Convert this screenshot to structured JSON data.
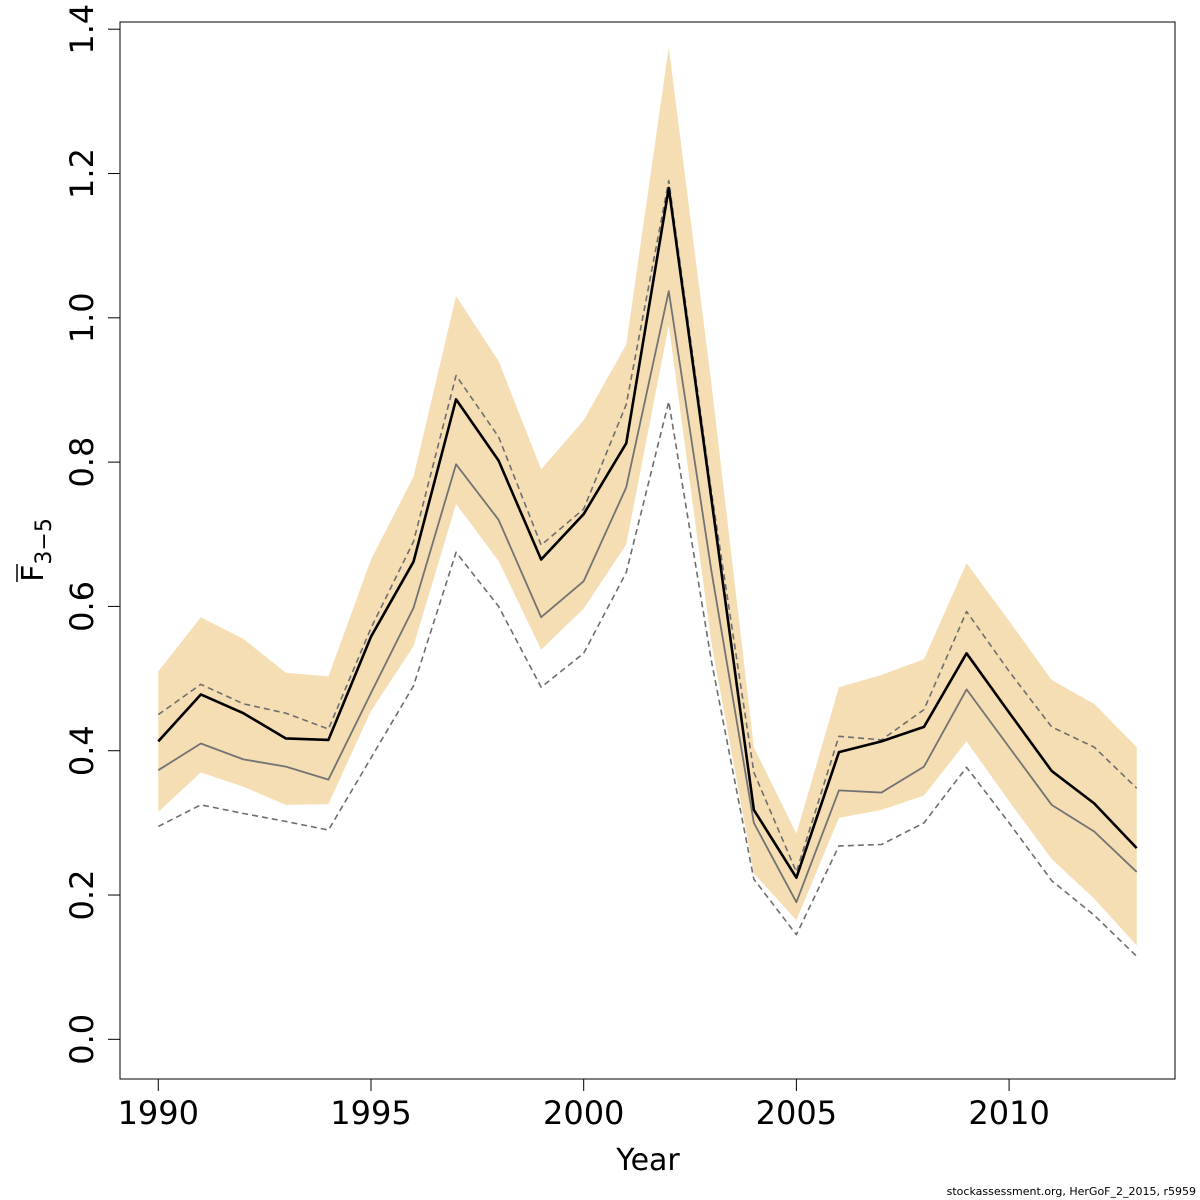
{
  "chart_data": {
    "type": "line",
    "xlabel": "Year",
    "ylabel": {
      "base": "F",
      "sub": "3−5"
    },
    "xlim": [
      1989.1,
      2013.9
    ],
    "ylim": [
      -0.055,
      1.41
    ],
    "xticks": [
      {
        "value": 1990,
        "label": "1990"
      },
      {
        "value": 1995,
        "label": "1995"
      },
      {
        "value": 2000,
        "label": "2000"
      },
      {
        "value": 2005,
        "label": "2005"
      },
      {
        "value": 2010,
        "label": "2010"
      }
    ],
    "yticks": [
      {
        "value": 0.0,
        "label": "0.0"
      },
      {
        "value": 0.2,
        "label": "0.2"
      },
      {
        "value": 0.4,
        "label": "0.4"
      },
      {
        "value": 0.6,
        "label": "0.6"
      },
      {
        "value": 0.8,
        "label": "0.8"
      },
      {
        "value": 1.0,
        "label": "1.0"
      },
      {
        "value": 1.2,
        "label": "1.2"
      },
      {
        "value": 1.4,
        "label": "1.4"
      }
    ],
    "x": [
      1990,
      1991,
      1992,
      1993,
      1994,
      1995,
      1996,
      1997,
      1998,
      1999,
      2000,
      2001,
      2002,
      2003,
      2004,
      2005,
      2006,
      2007,
      2008,
      2009,
      2010,
      2011,
      2012,
      2013
    ],
    "series": [
      {
        "role": "band-upper",
        "color": "#f5deb3",
        "values": [
          0.51,
          0.585,
          0.555,
          0.508,
          0.503,
          0.665,
          0.78,
          1.03,
          0.94,
          0.79,
          0.858,
          0.963,
          1.375,
          0.91,
          0.405,
          0.285,
          0.488,
          0.505,
          0.527,
          0.66,
          0.58,
          0.498,
          0.465,
          0.405
        ]
      },
      {
        "role": "band-lower",
        "color": "#f5deb3",
        "values": [
          0.315,
          0.37,
          0.35,
          0.325,
          0.326,
          0.455,
          0.545,
          0.742,
          0.663,
          0.54,
          0.597,
          0.686,
          0.99,
          0.55,
          0.23,
          0.165,
          0.307,
          0.318,
          0.338,
          0.413,
          0.33,
          0.25,
          0.195,
          0.13
        ]
      },
      {
        "role": "dashed-upper",
        "color": "#6e6e6e",
        "values": [
          0.45,
          0.492,
          0.465,
          0.452,
          0.43,
          0.57,
          0.69,
          0.92,
          0.835,
          0.685,
          0.735,
          0.88,
          1.19,
          0.76,
          0.37,
          0.232,
          0.42,
          0.415,
          0.457,
          0.593,
          0.51,
          0.433,
          0.405,
          0.348
        ]
      },
      {
        "role": "dashed-lower",
        "color": "#6e6e6e",
        "values": [
          0.295,
          0.325,
          0.313,
          0.302,
          0.29,
          0.39,
          0.49,
          0.675,
          0.6,
          0.488,
          0.535,
          0.647,
          0.884,
          0.525,
          0.222,
          0.145,
          0.268,
          0.27,
          0.3,
          0.377,
          0.3,
          0.22,
          0.172,
          0.115
        ]
      },
      {
        "role": "grey-line",
        "color": "#737373",
        "values": [
          0.373,
          0.41,
          0.388,
          0.378,
          0.36,
          0.48,
          0.598,
          0.797,
          0.72,
          0.585,
          0.635,
          0.765,
          1.037,
          0.65,
          0.3,
          0.19,
          0.345,
          0.342,
          0.378,
          0.485,
          0.405,
          0.325,
          0.288,
          0.232
        ]
      },
      {
        "role": "main-line",
        "color": "#000000",
        "values": [
          0.413,
          0.478,
          0.452,
          0.417,
          0.415,
          0.558,
          0.662,
          0.887,
          0.802,
          0.665,
          0.728,
          0.826,
          1.18,
          0.75,
          0.318,
          0.224,
          0.398,
          0.413,
          0.433,
          0.535,
          0.453,
          0.372,
          0.327,
          0.265
        ]
      }
    ],
    "grid": false,
    "legend": "none"
  },
  "footer": {
    "credit": "stockassessment.org, HerGoF_2_2015, r5959"
  }
}
